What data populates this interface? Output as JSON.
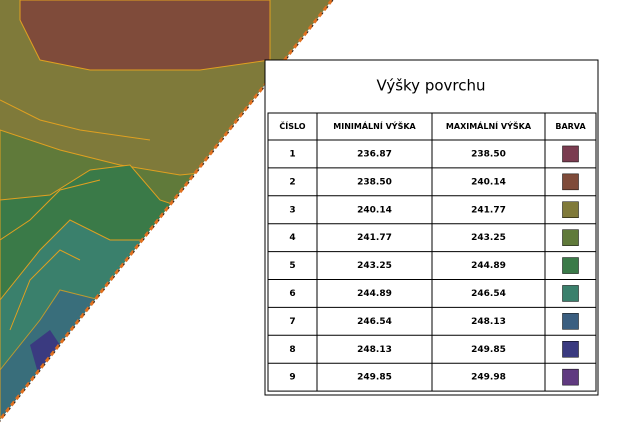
{
  "table": {
    "title": "Výšky povrchu",
    "columns": [
      "ČÍSLO",
      "MINIMÁLNÍ VÝŠKA",
      "MAXIMÁLNÍ VÝŠKA",
      "BARVA"
    ],
    "rows": [
      {
        "number": "1",
        "min": "236.87",
        "max": "238.50",
        "color": "#7a3c50"
      },
      {
        "number": "2",
        "min": "238.50",
        "max": "240.14",
        "color": "#7f4b3a"
      },
      {
        "number": "3",
        "min": "240.14",
        "max": "241.77",
        "color": "#807a3a"
      },
      {
        "number": "4",
        "min": "241.77",
        "max": "243.25",
        "color": "#607a3a"
      },
      {
        "number": "5",
        "min": "243.25",
        "max": "244.89",
        "color": "#3a7a48"
      },
      {
        "number": "6",
        "min": "244.89",
        "max": "246.54",
        "color": "#3a806c"
      },
      {
        "number": "7",
        "min": "246.54",
        "max": "248.13",
        "color": "#3a5e80"
      },
      {
        "number": "8",
        "min": "248.13",
        "max": "249.85",
        "color": "#3a3a80"
      },
      {
        "number": "9",
        "min": "249.85",
        "max": "249.98",
        "color": "#603a80"
      }
    ]
  }
}
